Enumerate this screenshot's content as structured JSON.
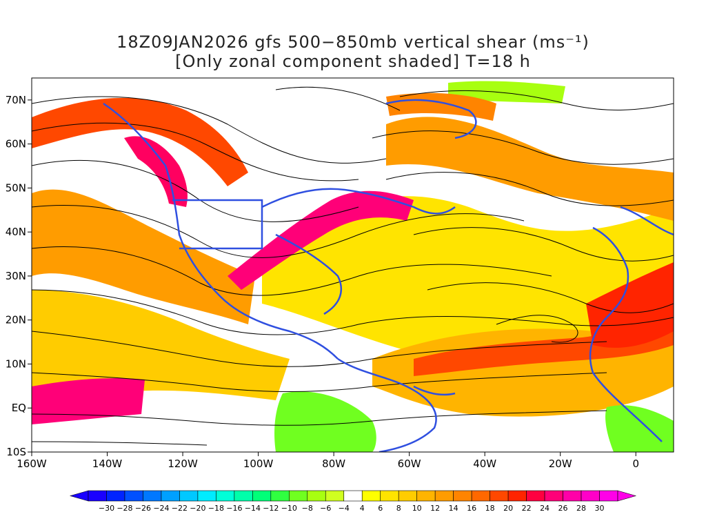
{
  "title": {
    "line1": "18Z09JAN2026 gfs 500−850mb vertical shear (ms⁻¹)",
    "line2": "[Only zonal component shaded] T=18 h"
  },
  "map": {
    "lon_range": [
      -160,
      10
    ],
    "lat_range": [
      -10,
      75
    ],
    "lon_ticks": [
      {
        "value": -160,
        "label": "160W"
      },
      {
        "value": -140,
        "label": "140W"
      },
      {
        "value": -120,
        "label": "120W"
      },
      {
        "value": -100,
        "label": "100W"
      },
      {
        "value": -80,
        "label": "80W"
      },
      {
        "value": -60,
        "label": "60W"
      },
      {
        "value": -40,
        "label": "40W"
      },
      {
        "value": -20,
        "label": "20W"
      },
      {
        "value": 0,
        "label": "0"
      }
    ],
    "lat_ticks": [
      {
        "value": 70,
        "label": "70N"
      },
      {
        "value": 60,
        "label": "60N"
      },
      {
        "value": 50,
        "label": "50N"
      },
      {
        "value": 40,
        "label": "40N"
      },
      {
        "value": 30,
        "label": "30N"
      },
      {
        "value": 20,
        "label": "20N"
      },
      {
        "value": 10,
        "label": "10N"
      },
      {
        "value": 0,
        "label": "EQ"
      },
      {
        "value": -10,
        "label": "10S"
      }
    ],
    "coast_color": "#2f4fe0"
  },
  "colorbar": {
    "labels": [
      "-30",
      "-28",
      "-26",
      "-24",
      "-22",
      "-20",
      "-18",
      "-16",
      "-14",
      "-12",
      "-10",
      "-8",
      "-6",
      "-4",
      "4",
      "6",
      "8",
      "10",
      "12",
      "14",
      "16",
      "18",
      "20",
      "22",
      "24",
      "26",
      "28",
      "30"
    ],
    "colors": [
      "#1a00ff",
      "#0024ff",
      "#0050ff",
      "#0078ff",
      "#00a0ff",
      "#00c8ff",
      "#00ecff",
      "#00ffd8",
      "#00ffaa",
      "#00ff78",
      "#30ff40",
      "#70ff20",
      "#a8ff10",
      "#d0ff20",
      "#ffffff",
      "#ffff00",
      "#ffe400",
      "#ffcc00",
      "#ffb400",
      "#ff9c00",
      "#ff8400",
      "#ff6800",
      "#ff4800",
      "#ff2400",
      "#ff0040",
      "#ff0078",
      "#ff00a8",
      "#ff00c8",
      "#ff00e8"
    ],
    "low_arrow_color": "#1a00ff",
    "high_arrow_color": "#ff00e8"
  }
}
